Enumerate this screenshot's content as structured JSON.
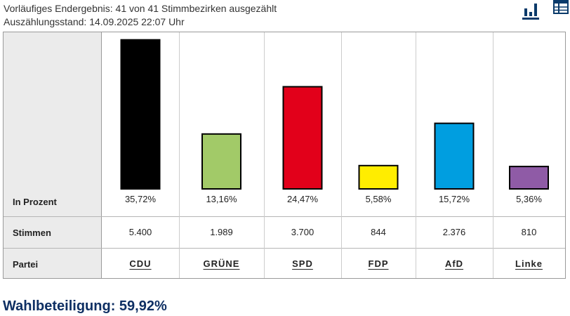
{
  "status": {
    "line1": "Vorläufiges Endergebnis: 41 von 41 Stimmbezirken ausgezählt",
    "line2": "Auszählungsstand: 14.09.2025 22:07 Uhr"
  },
  "view_toggle": {
    "chart_icon": "bar-chart-icon",
    "table_icon": "table-icon"
  },
  "row_labels": {
    "percent": "In Prozent",
    "votes": "Stimmen",
    "party": "Partei"
  },
  "chart_data": {
    "type": "bar",
    "categories": [
      "CDU",
      "GRÜNE",
      "SPD",
      "FDP",
      "AfD",
      "Linke"
    ],
    "values": [
      35.72,
      13.16,
      24.47,
      5.58,
      15.72,
      5.36
    ],
    "percent_labels": [
      "35,72%",
      "13,16%",
      "24,47%",
      "5,58%",
      "15,72%",
      "5,36%"
    ],
    "votes": [
      "5.400",
      "1.989",
      "3.700",
      "844",
      "2.376",
      "810"
    ],
    "colors": [
      "#000000",
      "#a2ca68",
      "#e2001a",
      "#ffed00",
      "#009ee0",
      "#8f5ba6"
    ],
    "ylim": [
      0,
      36
    ]
  },
  "turnout": "Wahlbeteiligung: 59,92%"
}
